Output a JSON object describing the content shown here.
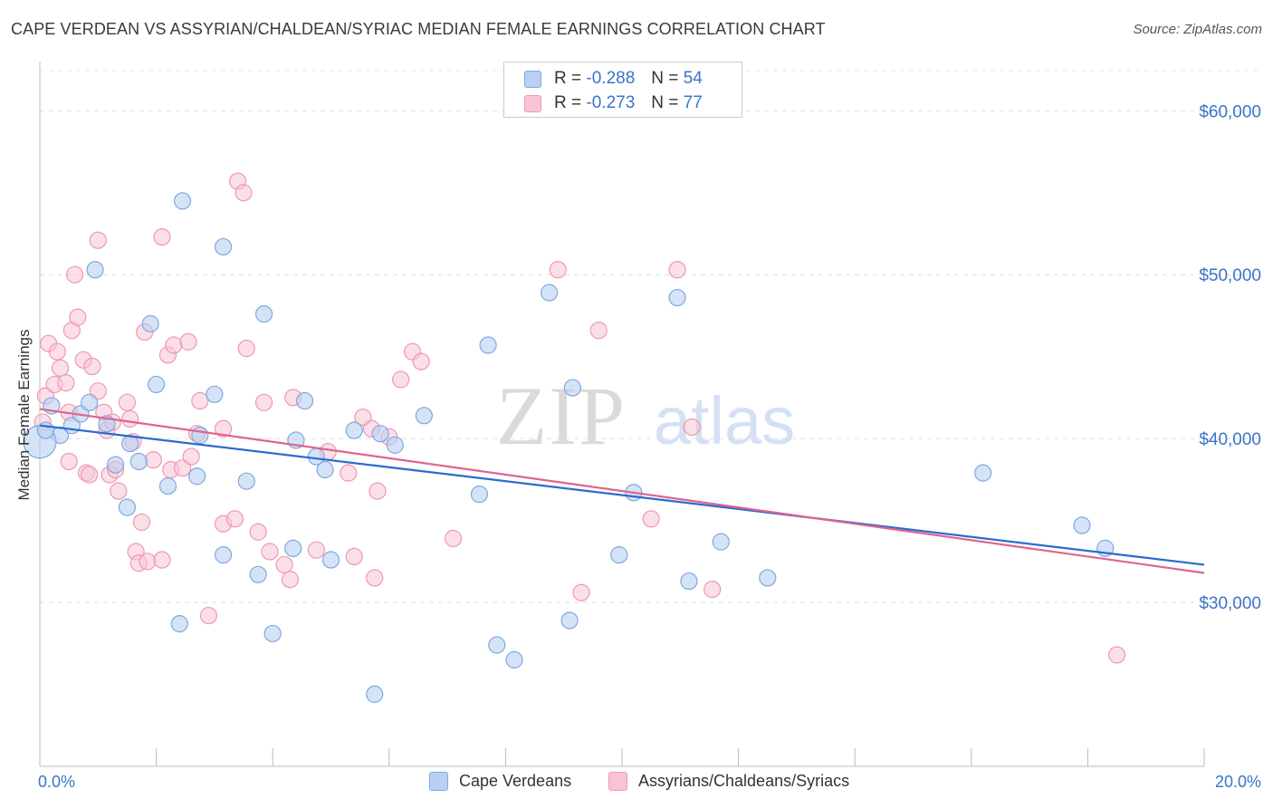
{
  "header": {
    "title": "CAPE VERDEAN VS ASSYRIAN/CHALDEAN/SYRIAC MEDIAN FEMALE EARNINGS CORRELATION CHART",
    "source": "Source: ZipAtlas.com"
  },
  "legend": {
    "r_label": "R =",
    "n_label": "N =",
    "rows": [
      {
        "r": "-0.288",
        "n": "54"
      },
      {
        "r": "-0.273",
        "n": "77"
      }
    ]
  },
  "watermark": {
    "zip": "ZIP",
    "atlas": "atlas"
  },
  "colors": {
    "blue_fill": "#b9d0f2",
    "blue_stroke": "#7fa8e0",
    "blue_line": "#2a6bd1",
    "pink_fill": "#f8c4d4",
    "pink_stroke": "#ee98b3",
    "pink_line": "#e06391",
    "tick_label": "#3a74c8"
  },
  "chart_data": {
    "type": "scatter",
    "title": "CAPE VERDEAN VS ASSYRIAN/CHALDEAN/SYRIAC MEDIAN FEMALE EARNINGS CORRELATION CHART",
    "xlabel": "",
    "ylabel": "Median Female Earnings",
    "xlim": [
      0,
      20
    ],
    "ylim": [
      20000,
      63000
    ],
    "x_tick_labels": [
      "0.0%",
      "20.0%"
    ],
    "y_ticks": [
      30000,
      40000,
      50000,
      60000
    ],
    "y_tick_labels": [
      "$30,000",
      "$40,000",
      "$50,000",
      "$60,000"
    ],
    "grid": true,
    "legend_position": "top-center",
    "series": [
      {
        "name": "Cape Verdeans",
        "r": -0.288,
        "n": 54,
        "trend": {
          "x": [
            0,
            20
          ],
          "y": [
            40800,
            32300
          ]
        },
        "points": [
          [
            0.2,
            42000
          ],
          [
            0.35,
            40200
          ],
          [
            0.55,
            40800
          ],
          [
            0.7,
            41500
          ],
          [
            0.85,
            42200
          ],
          [
            0.95,
            50300
          ],
          [
            1.15,
            40900
          ],
          [
            1.3,
            38400
          ],
          [
            1.5,
            35800
          ],
          [
            1.55,
            39700
          ],
          [
            1.7,
            38600
          ],
          [
            1.9,
            47000
          ],
          [
            2.0,
            43300
          ],
          [
            2.2,
            37100
          ],
          [
            2.4,
            28700
          ],
          [
            2.45,
            54500
          ],
          [
            2.75,
            40200
          ],
          [
            2.7,
            37700
          ],
          [
            3.0,
            42700
          ],
          [
            3.15,
            51700
          ],
          [
            3.15,
            32900
          ],
          [
            3.55,
            37400
          ],
          [
            3.75,
            31700
          ],
          [
            3.85,
            47600
          ],
          [
            4.0,
            28100
          ],
          [
            4.35,
            33300
          ],
          [
            4.4,
            39900
          ],
          [
            4.55,
            42300
          ],
          [
            4.75,
            38900
          ],
          [
            4.9,
            38100
          ],
          [
            5.0,
            32600
          ],
          [
            5.4,
            40500
          ],
          [
            5.75,
            24400
          ],
          [
            5.85,
            40300
          ],
          [
            6.1,
            39600
          ],
          [
            6.6,
            41400
          ],
          [
            7.55,
            36600
          ],
          [
            7.7,
            45700
          ],
          [
            7.85,
            27400
          ],
          [
            8.15,
            26500
          ],
          [
            8.75,
            48900
          ],
          [
            9.1,
            28900
          ],
          [
            9.15,
            43100
          ],
          [
            9.95,
            32900
          ],
          [
            10.2,
            36700
          ],
          [
            10.95,
            48600
          ],
          [
            11.15,
            31300
          ],
          [
            11.7,
            33700
          ],
          [
            12.5,
            31500
          ],
          [
            16.2,
            37900
          ],
          [
            17.9,
            34700
          ],
          [
            18.3,
            33300
          ],
          [
            0.0,
            39800
          ],
          [
            0.1,
            40500
          ]
        ]
      },
      {
        "name": "Assyrians/Chaldeans/Syriacs",
        "r": -0.273,
        "n": 77,
        "trend": {
          "x": [
            0,
            20
          ],
          "y": [
            41800,
            31800
          ]
        },
        "points": [
          [
            0.05,
            41000
          ],
          [
            0.1,
            42600
          ],
          [
            0.15,
            45800
          ],
          [
            0.25,
            43300
          ],
          [
            0.3,
            45300
          ],
          [
            0.35,
            44300
          ],
          [
            0.45,
            43400
          ],
          [
            0.5,
            41600
          ],
          [
            0.5,
            38600
          ],
          [
            0.55,
            46600
          ],
          [
            0.6,
            50000
          ],
          [
            0.65,
            47400
          ],
          [
            0.75,
            44800
          ],
          [
            0.8,
            37900
          ],
          [
            0.85,
            37800
          ],
          [
            0.9,
            44400
          ],
          [
            1.0,
            52100
          ],
          [
            1.0,
            42900
          ],
          [
            1.1,
            41600
          ],
          [
            1.15,
            40500
          ],
          [
            1.2,
            37800
          ],
          [
            1.25,
            41000
          ],
          [
            1.3,
            38100
          ],
          [
            1.35,
            36800
          ],
          [
            1.5,
            42200
          ],
          [
            1.55,
            41200
          ],
          [
            1.6,
            39800
          ],
          [
            1.65,
            33100
          ],
          [
            1.7,
            32400
          ],
          [
            1.75,
            34900
          ],
          [
            1.8,
            46500
          ],
          [
            1.85,
            32500
          ],
          [
            1.95,
            38700
          ],
          [
            2.1,
            32600
          ],
          [
            2.1,
            52300
          ],
          [
            2.2,
            45100
          ],
          [
            2.25,
            38100
          ],
          [
            2.3,
            45700
          ],
          [
            2.45,
            38200
          ],
          [
            2.55,
            45900
          ],
          [
            2.6,
            38900
          ],
          [
            2.7,
            40300
          ],
          [
            2.75,
            42300
          ],
          [
            2.9,
            29200
          ],
          [
            3.15,
            34800
          ],
          [
            3.15,
            40600
          ],
          [
            3.35,
            35100
          ],
          [
            3.4,
            55700
          ],
          [
            3.5,
            55000
          ],
          [
            3.55,
            45500
          ],
          [
            3.75,
            34300
          ],
          [
            3.85,
            42200
          ],
          [
            3.95,
            33100
          ],
          [
            4.2,
            32300
          ],
          [
            4.3,
            31400
          ],
          [
            4.35,
            42500
          ],
          [
            4.75,
            33200
          ],
          [
            4.95,
            39200
          ],
          [
            5.3,
            37900
          ],
          [
            5.4,
            32800
          ],
          [
            5.55,
            41300
          ],
          [
            5.7,
            40600
          ],
          [
            5.75,
            31500
          ],
          [
            5.8,
            36800
          ],
          [
            6.0,
            40100
          ],
          [
            6.2,
            43600
          ],
          [
            6.4,
            45300
          ],
          [
            6.55,
            44700
          ],
          [
            7.1,
            33900
          ],
          [
            8.9,
            50300
          ],
          [
            9.3,
            30600
          ],
          [
            9.6,
            46600
          ],
          [
            10.5,
            35100
          ],
          [
            10.95,
            50300
          ],
          [
            11.55,
            30800
          ],
          [
            11.2,
            40700
          ],
          [
            18.5,
            26800
          ]
        ]
      }
    ]
  },
  "bottom_legend": [
    "Cape Verdeans",
    "Assyrians/Chaldeans/Syriacs"
  ]
}
